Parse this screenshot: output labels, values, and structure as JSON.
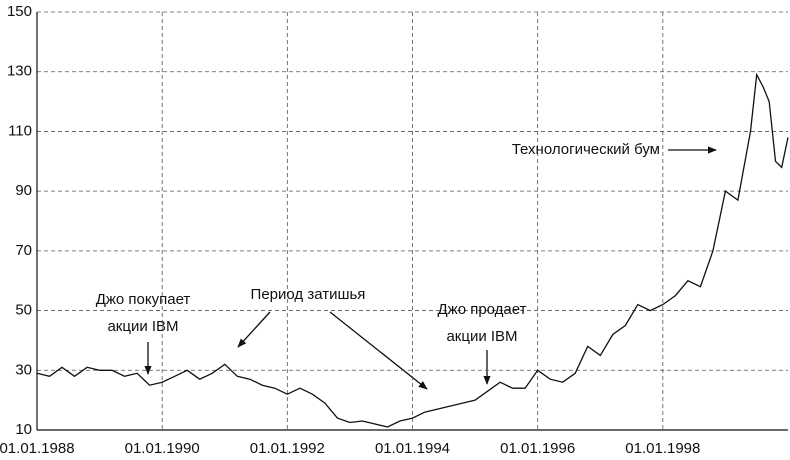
{
  "chart_data": {
    "type": "line",
    "x": [
      1988.0,
      1988.2,
      1988.4,
      1988.6,
      1988.8,
      1989.0,
      1989.2,
      1989.4,
      1989.6,
      1989.8,
      1990.0,
      1990.2,
      1990.4,
      1990.6,
      1990.8,
      1991.0,
      1991.2,
      1991.4,
      1991.6,
      1991.8,
      1992.0,
      1992.2,
      1992.4,
      1992.6,
      1992.8,
      1993.0,
      1993.2,
      1993.4,
      1993.6,
      1993.8,
      1994.0,
      1994.2,
      1994.4,
      1994.6,
      1994.8,
      1995.0,
      1995.2,
      1995.4,
      1995.6,
      1995.8,
      1996.0,
      1996.2,
      1996.4,
      1996.6,
      1996.8,
      1997.0,
      1997.2,
      1997.4,
      1997.6,
      1997.8,
      1998.0,
      1998.2,
      1998.4,
      1998.6,
      1998.8,
      1999.0,
      1999.2,
      1999.4,
      1999.5,
      1999.6,
      1999.7,
      1999.8,
      1999.9,
      2000.0
    ],
    "series": [
      {
        "color": "#111111",
        "values": [
          29,
          28,
          31,
          28,
          31,
          30,
          30,
          28,
          29,
          25,
          26,
          28,
          30,
          27,
          29,
          32,
          28,
          27,
          25,
          24,
          22,
          24,
          22,
          19,
          14,
          12.5,
          13,
          12,
          11,
          13,
          14,
          16,
          17,
          18,
          19,
          20,
          23,
          26,
          24,
          24,
          30,
          27,
          26,
          29,
          38,
          35,
          42,
          45,
          52,
          50,
          52,
          55,
          60,
          58,
          70,
          90,
          87,
          110,
          129,
          125,
          120,
          100,
          98,
          108
        ]
      }
    ],
    "xlim": [
      1988,
      2000
    ],
    "xticks": [
      {
        "value": 1988,
        "label": "01.01.1988"
      },
      {
        "value": 1990,
        "label": "01.01.1990"
      },
      {
        "value": 1992,
        "label": "01.01.1992"
      },
      {
        "value": 1994,
        "label": "01.01.1994"
      },
      {
        "value": 1996,
        "label": "01.01.1996"
      },
      {
        "value": 1998,
        "label": "01.01.1998"
      }
    ],
    "ylim": [
      10,
      150
    ],
    "yticks": [
      10,
      30,
      50,
      70,
      90,
      110,
      130,
      150
    ],
    "grid": true,
    "annotations": [
      {
        "lines": [
          "Джо покупает",
          "акции IBM"
        ]
      },
      {
        "lines": [
          "Период затишья"
        ]
      },
      {
        "lines": [
          "Джо продает",
          "акции IBM"
        ]
      },
      {
        "lines": [
          "Технологический бум"
        ]
      }
    ]
  }
}
